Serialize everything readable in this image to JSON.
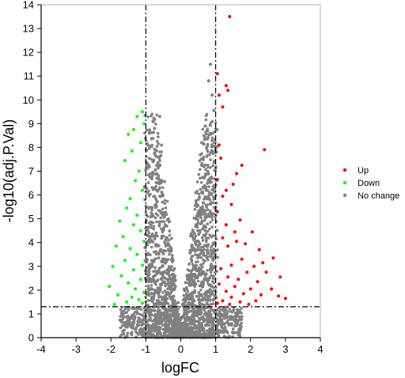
{
  "chart_data": {
    "type": "scatter",
    "title": "",
    "xlabel": "logFC",
    "ylabel": "-log10(adj.P.Val)",
    "xlim": [
      -4,
      4
    ],
    "ylim": [
      0,
      14
    ],
    "xticks": [
      -4,
      -3,
      -2,
      -1,
      0,
      1,
      2,
      3,
      4
    ],
    "yticks": [
      0,
      1,
      2,
      3,
      4,
      5,
      6,
      7,
      8,
      9,
      10,
      11,
      12,
      13,
      14
    ],
    "grid": false,
    "legend_position": "right",
    "thresholds": {
      "vlines": [
        -1,
        1
      ],
      "hline": 1.3
    },
    "series": [
      {
        "name": "Up",
        "color": "#ff0000",
        "points": [
          [
            1.4,
            13.5
          ],
          [
            1.05,
            11.1
          ],
          [
            1.3,
            10.6
          ],
          [
            1.35,
            10.4
          ],
          [
            1.1,
            10.2
          ],
          [
            1.2,
            9.7
          ],
          [
            1.1,
            8.1
          ],
          [
            2.4,
            7.9
          ],
          [
            1.15,
            7.55
          ],
          [
            1.75,
            7.25
          ],
          [
            1.6,
            6.9
          ],
          [
            1.05,
            6.65
          ],
          [
            1.5,
            6.45
          ],
          [
            1.3,
            6.2
          ],
          [
            1.2,
            5.95
          ],
          [
            1.45,
            5.6
          ],
          [
            1.05,
            5.3
          ],
          [
            1.7,
            4.95
          ],
          [
            1.3,
            4.75
          ],
          [
            1.55,
            4.45
          ],
          [
            2.05,
            4.45
          ],
          [
            1.2,
            4.2
          ],
          [
            1.6,
            4.05
          ],
          [
            1.35,
            3.85
          ],
          [
            1.85,
            3.95
          ],
          [
            2.25,
            3.7
          ],
          [
            2.65,
            3.35
          ],
          [
            2.35,
            3.15
          ],
          [
            1.75,
            3.3
          ],
          [
            1.45,
            3.05
          ],
          [
            2.1,
            3.0
          ],
          [
            1.15,
            2.9
          ],
          [
            1.9,
            2.75
          ],
          [
            2.45,
            2.75
          ],
          [
            2.85,
            2.55
          ],
          [
            1.35,
            2.55
          ],
          [
            1.65,
            2.45
          ],
          [
            2.2,
            2.35
          ],
          [
            1.1,
            2.25
          ],
          [
            1.55,
            2.15
          ],
          [
            2.0,
            2.05
          ],
          [
            2.6,
            2.05
          ],
          [
            1.3,
            1.95
          ],
          [
            1.8,
            1.85
          ],
          [
            2.3,
            1.8
          ],
          [
            2.8,
            1.75
          ],
          [
            1.45,
            1.7
          ],
          [
            3.0,
            1.65
          ],
          [
            1.2,
            1.55
          ],
          [
            1.7,
            1.5
          ],
          [
            2.15,
            1.55
          ],
          [
            1.05,
            1.45
          ],
          [
            1.4,
            1.4
          ],
          [
            1.95,
            1.4
          ]
        ]
      },
      {
        "name": "Down",
        "color": "#00ff00",
        "points": [
          [
            -1.1,
            9.5
          ],
          [
            -1.25,
            9.3
          ],
          [
            -1.05,
            9.0
          ],
          [
            -1.35,
            8.75
          ],
          [
            -1.5,
            8.55
          ],
          [
            -1.15,
            8.2
          ],
          [
            -1.4,
            7.85
          ],
          [
            -1.6,
            7.45
          ],
          [
            -1.2,
            7.0
          ],
          [
            -1.3,
            6.6
          ],
          [
            -1.1,
            6.2
          ],
          [
            -1.45,
            5.85
          ],
          [
            -1.55,
            5.45
          ],
          [
            -1.25,
            5.15
          ],
          [
            -1.75,
            4.9
          ],
          [
            -1.35,
            4.75
          ],
          [
            -1.15,
            4.5
          ],
          [
            -1.65,
            4.25
          ],
          [
            -1.05,
            4.05
          ],
          [
            -1.85,
            3.85
          ],
          [
            -1.45,
            3.75
          ],
          [
            -1.25,
            3.5
          ],
          [
            -1.6,
            3.25
          ],
          [
            -1.1,
            3.05
          ],
          [
            -1.95,
            3.0
          ],
          [
            -1.35,
            2.85
          ],
          [
            -1.7,
            2.6
          ],
          [
            -1.15,
            2.45
          ],
          [
            -1.5,
            2.3
          ],
          [
            -2.05,
            2.15
          ],
          [
            -1.3,
            2.05
          ],
          [
            -1.05,
            1.9
          ],
          [
            -1.8,
            1.8
          ],
          [
            -1.4,
            1.7
          ],
          [
            -1.2,
            1.6
          ],
          [
            -1.55,
            1.5
          ],
          [
            -1.1,
            1.45
          ],
          [
            -1.9,
            1.4
          ]
        ]
      },
      {
        "name": "No change",
        "color": "#808080",
        "points": [
          [
            0.85,
            11.5
          ],
          [
            0.8,
            10.8
          ],
          [
            0.9,
            10.2
          ],
          [
            -0.6,
            9.3
          ],
          [
            0.95,
            9.55
          ],
          [
            -0.75,
            8.8
          ],
          [
            0.7,
            8.9
          ],
          [
            -0.9,
            8.6
          ],
          [
            0.6,
            8.2
          ],
          [
            -0.55,
            8.1
          ]
        ]
      }
    ]
  },
  "legend": [
    {
      "label": "Up",
      "color": "#ff0000"
    },
    {
      "label": "Down",
      "color": "#00ff00"
    },
    {
      "label": "No change",
      "color": "#808080"
    }
  ]
}
